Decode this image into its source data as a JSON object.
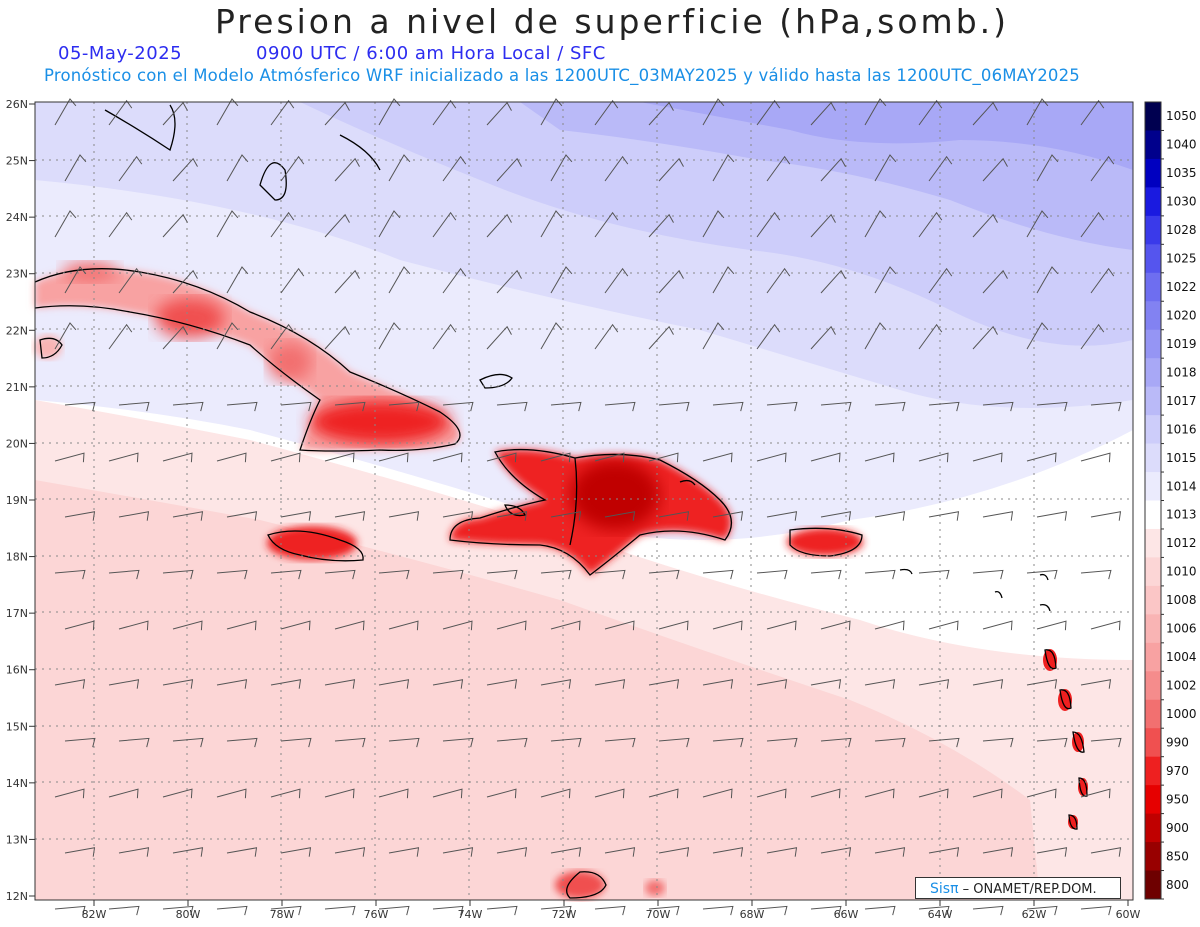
{
  "title": "Presion a nivel de superficie (hPa,somb.)",
  "date": "05-May-2025",
  "valid_time": "0900 UTC / 6:00 am Hora Local / SFC",
  "forecast_note": "Pronóstico con el Modelo Atmósferico WRF inicializado a las 1200UTC_03MAY2025 y válido hasta las  1200UTC_06MAY2025",
  "lat_labels": [
    "26N",
    "25N",
    "24N",
    "23N",
    "22N",
    "21N",
    "20N",
    "19N",
    "18N",
    "17N",
    "16N",
    "15N",
    "14N",
    "13N",
    "12N"
  ],
  "lon_labels": [
    "82W",
    "80W",
    "78W",
    "76W",
    "74W",
    "72W",
    "70W",
    "68W",
    "66W",
    "64W",
    "62W",
    "60W"
  ],
  "colorbar": {
    "levels": [
      "1050",
      "1040",
      "1035",
      "1030",
      "1028",
      "1025",
      "1022",
      "1020",
      "1019",
      "1018",
      "1017",
      "1016",
      "1015",
      "1014",
      "1013",
      "1012",
      "1010",
      "1008",
      "1006",
      "1004",
      "1002",
      "1000",
      "990",
      "970",
      "950",
      "900",
      "850",
      "800"
    ],
    "colors": [
      "#000050",
      "#00008c",
      "#0000c0",
      "#1a1ae0",
      "#3a3aea",
      "#5555ee",
      "#6e6ef0",
      "#8282f2",
      "#9595f4",
      "#a8a8f6",
      "#babaf8",
      "#cdcdfa",
      "#dcdcfb",
      "#ebebfd",
      "#ffffff",
      "#fde6e6",
      "#fcd6d6",
      "#fbc6c6",
      "#f9b4b4",
      "#f8a2a2",
      "#f58c8c",
      "#f27070",
      "#f05050",
      "#ee2020",
      "#e60000",
      "#c00000",
      "#980000",
      "#6e0000"
    ]
  },
  "credit": {
    "logo": "Sisπ",
    "text": "– ONAMET/REP.DOM."
  }
}
